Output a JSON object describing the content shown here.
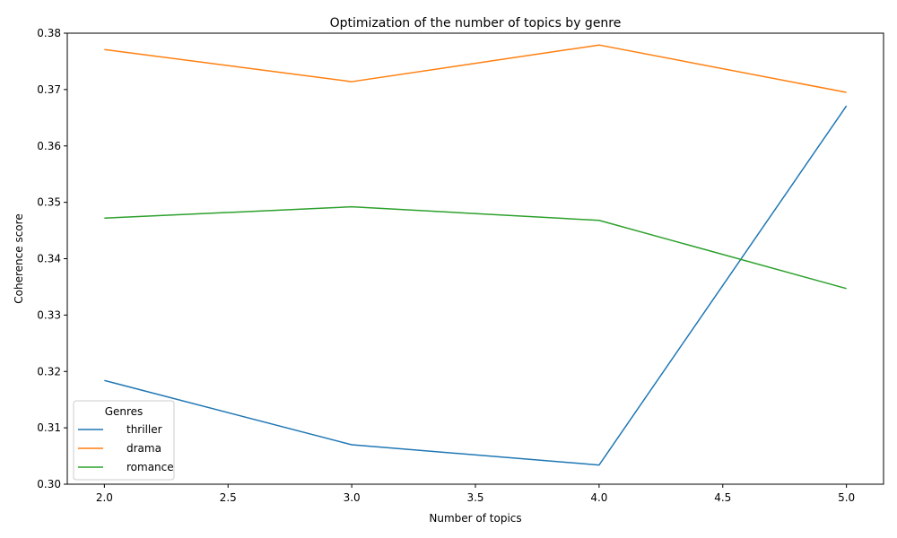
{
  "chart_data": {
    "type": "line",
    "title": "Optimization of the number of topics by genre",
    "xlabel": "Number of topics",
    "ylabel": "Coherence score",
    "x": [
      2.0,
      3.0,
      4.0,
      5.0
    ],
    "xlim": [
      1.85,
      5.15
    ],
    "ylim": [
      0.3,
      0.38
    ],
    "xticks": [
      2.0,
      2.5,
      3.0,
      3.5,
      4.0,
      4.5,
      5.0
    ],
    "xtick_labels": [
      "2.0",
      "2.5",
      "3.0",
      "3.5",
      "4.0",
      "4.5",
      "5.0"
    ],
    "yticks": [
      0.3,
      0.31,
      0.32,
      0.33,
      0.34,
      0.35,
      0.36,
      0.37,
      0.38
    ],
    "ytick_labels": [
      "0.30",
      "0.31",
      "0.32",
      "0.33",
      "0.34",
      "0.35",
      "0.36",
      "0.37",
      "0.38"
    ],
    "grid": false,
    "legend": {
      "title": "Genres",
      "placement": "lower-left"
    },
    "series": [
      {
        "name": "thriller",
        "color": "#1f77b4",
        "values": [
          0.3184,
          0.307,
          0.3034,
          0.3671
        ]
      },
      {
        "name": "drama",
        "color": "#ff7f0e",
        "values": [
          0.3771,
          0.3714,
          0.3779,
          0.3695
        ]
      },
      {
        "name": "romance",
        "color": "#2ca02c",
        "values": [
          0.3472,
          0.3492,
          0.3468,
          0.3347
        ]
      }
    ]
  }
}
